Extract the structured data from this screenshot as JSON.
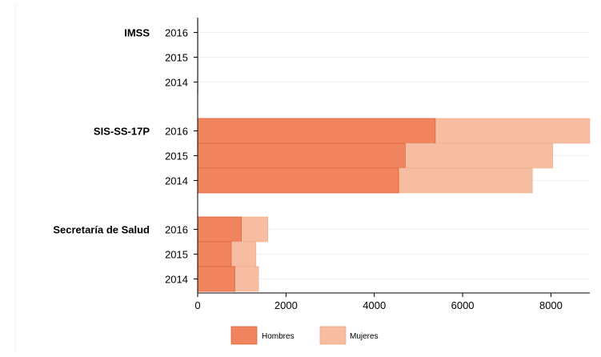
{
  "chart_data": {
    "type": "bar",
    "orientation": "horizontal",
    "stacked": true,
    "groups": [
      {
        "name": "IMSS",
        "rows": [
          {
            "year": "2016",
            "hombres": 4,
            "mujeres": 3
          },
          {
            "year": "2015",
            "hombres": 4,
            "mujeres": 3
          },
          {
            "year": "2014",
            "hombres": 4,
            "mujeres": 3
          }
        ]
      },
      {
        "name": "SIS-SS-17P",
        "rows": [
          {
            "year": "2016",
            "hombres": 5380,
            "mujeres": 3500
          },
          {
            "year": "2015",
            "hombres": 4700,
            "mujeres": 3340
          },
          {
            "year": "2014",
            "hombres": 4550,
            "mujeres": 3030
          }
        ]
      },
      {
        "name": "Secretaría de Salud",
        "rows": [
          {
            "year": "2016",
            "hombres": 990,
            "mujeres": 600
          },
          {
            "year": "2015",
            "hombres": 760,
            "mujeres": 560
          },
          {
            "year": "2014",
            "hombres": 840,
            "mujeres": 540
          }
        ]
      }
    ],
    "series": [
      {
        "name": "Hombres",
        "color": "#ef845e"
      },
      {
        "name": "Mujeres",
        "color": "#f6bda2"
      }
    ],
    "x_ticks": [
      "0",
      "2000",
      "4000",
      "6000",
      "8000"
    ],
    "xlim": [
      0,
      8880
    ],
    "grid": true,
    "legend_position": "bottom"
  }
}
